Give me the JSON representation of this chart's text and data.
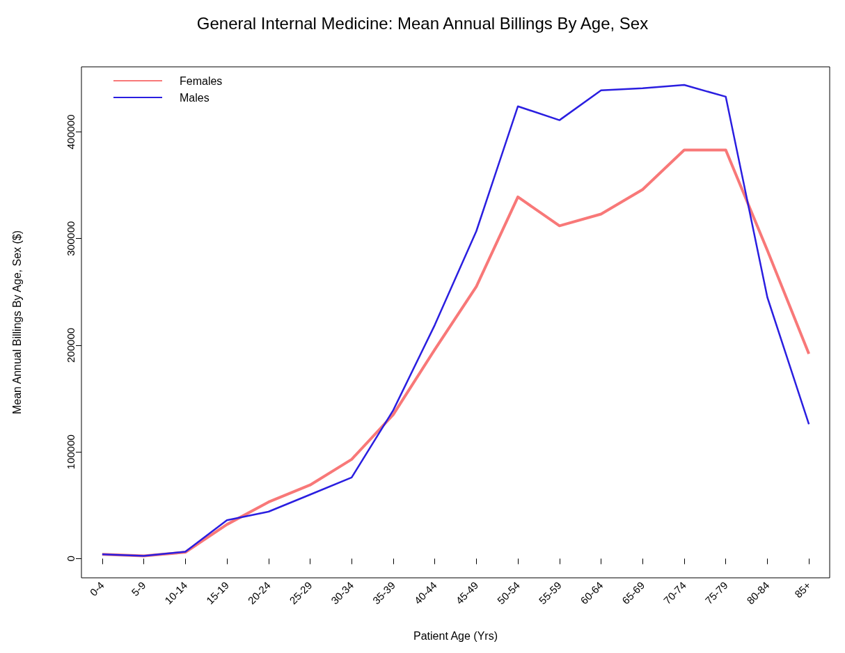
{
  "chart_data": {
    "type": "line",
    "title": "General Internal Medicine: Mean Annual Billings By Age, Sex",
    "xlabel": "Patient Age (Yrs)",
    "ylabel": "Mean Annual Billings By Age, Sex ($)",
    "categories": [
      "0-4",
      "5-9",
      "10-14",
      "15-19",
      "20-24",
      "25-29",
      "30-34",
      "35-39",
      "40-44",
      "45-49",
      "50-54",
      "55-59",
      "60-64",
      "65-69",
      "70-74",
      "75-79",
      "80-84",
      "85+"
    ],
    "series": [
      {
        "name": "Females",
        "color": "#f87878",
        "values": [
          4000,
          2500,
          6000,
          32000,
          53000,
          69000,
          93000,
          135000,
          196000,
          255000,
          339000,
          312000,
          323000,
          346000,
          383000,
          383000,
          289000,
          192000
        ]
      },
      {
        "name": "Males",
        "color": "#2a1ee0",
        "values": [
          4000,
          2500,
          6500,
          36000,
          44000,
          60000,
          76000,
          139000,
          219000,
          307000,
          424000,
          411000,
          439000,
          441000,
          444000,
          433000,
          245000,
          126000
        ]
      }
    ],
    "ylim": [
      -18000,
      461000
    ],
    "yticks": [
      0,
      100000,
      200000,
      300000,
      400000
    ],
    "grid": false,
    "legend": "top left",
    "marker": "none",
    "line_style": "solid"
  }
}
